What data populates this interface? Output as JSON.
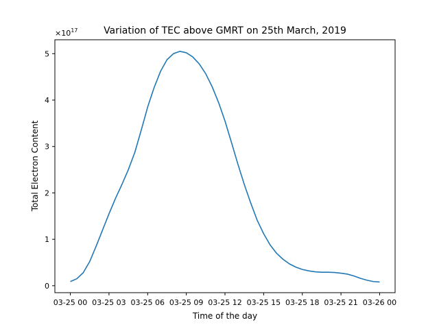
{
  "chart_data": {
    "type": "line",
    "title": "Variation of TEC above GMRT on 25th March, 2019",
    "xlabel": "Time of the day",
    "ylabel": "Total Electron Content",
    "y_scale_label": "×10",
    "y_scale_exponent": "17",
    "y_multiplier": 1e+17,
    "xlim_hours": [
      -1.2,
      25.2
    ],
    "ylim": [
      -0.15,
      5.3
    ],
    "x_ticks": [
      {
        "hour": 0,
        "label": "03-25 00"
      },
      {
        "hour": 3,
        "label": "03-25 03"
      },
      {
        "hour": 6,
        "label": "03-25 06"
      },
      {
        "hour": 9,
        "label": "03-25 09"
      },
      {
        "hour": 12,
        "label": "03-25 12"
      },
      {
        "hour": 15,
        "label": "03-25 15"
      },
      {
        "hour": 18,
        "label": "03-25 18"
      },
      {
        "hour": 21,
        "label": "03-25 21"
      },
      {
        "hour": 24,
        "label": "03-26 00"
      }
    ],
    "y_ticks": [
      {
        "value": 0,
        "label": "0"
      },
      {
        "value": 1,
        "label": "1"
      },
      {
        "value": 2,
        "label": "2"
      },
      {
        "value": 3,
        "label": "3"
      },
      {
        "value": 4,
        "label": "4"
      },
      {
        "value": 5,
        "label": "5"
      }
    ],
    "grid": false,
    "series": [
      {
        "color": "#1f77b4",
        "x_hours": [
          0,
          0.5,
          1,
          1.5,
          2,
          2.5,
          3,
          3.5,
          4,
          4.5,
          5,
          5.5,
          6,
          6.5,
          7,
          7.5,
          8,
          8.5,
          9,
          9.5,
          10,
          10.5,
          11,
          11.5,
          12,
          12.5,
          13,
          13.5,
          14,
          14.5,
          15,
          15.5,
          16,
          16.5,
          17,
          17.5,
          18,
          18.5,
          19,
          19.5,
          20,
          20.5,
          21,
          21.5,
          22,
          22.5,
          23,
          23.5,
          24
        ],
        "values": [
          0.09,
          0.15,
          0.28,
          0.52,
          0.85,
          1.2,
          1.55,
          1.88,
          2.18,
          2.5,
          2.87,
          3.35,
          3.85,
          4.27,
          4.62,
          4.87,
          5.0,
          5.05,
          5.02,
          4.93,
          4.78,
          4.57,
          4.29,
          3.95,
          3.55,
          3.09,
          2.62,
          2.18,
          1.78,
          1.41,
          1.12,
          0.88,
          0.7,
          0.57,
          0.47,
          0.4,
          0.35,
          0.32,
          0.3,
          0.29,
          0.29,
          0.285,
          0.27,
          0.25,
          0.21,
          0.16,
          0.12,
          0.09,
          0.08
        ]
      }
    ]
  }
}
